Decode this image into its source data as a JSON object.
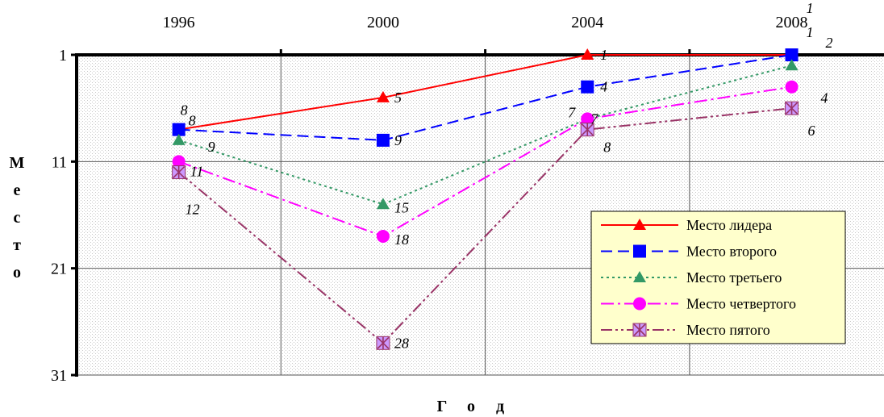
{
  "chart_data": {
    "type": "line",
    "xlabel": "Год",
    "ylabel": "Место",
    "x": [
      "1996",
      "2000",
      "2004",
      "2008"
    ],
    "yticks": [
      "1",
      "11",
      "21",
      "31"
    ],
    "ylim": [
      31,
      1
    ],
    "y_inverted": true,
    "grid": true,
    "legend_position": "bottom-right",
    "series": [
      {
        "name": "Место лидера",
        "values": [
          8,
          5,
          1,
          1
        ],
        "labels": [
          "8",
          "5",
          "1",
          "1"
        ],
        "color": "#ff0000",
        "dash": "solid",
        "marker": "triangle"
      },
      {
        "name": "Место второго",
        "values": [
          8,
          9,
          4,
          1
        ],
        "labels": [
          "8",
          "9",
          "4",
          "1"
        ],
        "color": "#0000ff",
        "dash": "dashed",
        "marker": "square"
      },
      {
        "name": "Место третьего",
        "values": [
          9,
          15,
          7,
          2
        ],
        "labels": [
          "9",
          "15",
          "7",
          "2"
        ],
        "color": "#339966",
        "dash": "dotted",
        "marker": "triangle"
      },
      {
        "name": "Место четвертого",
        "values": [
          11,
          18,
          7,
          4
        ],
        "labels": [
          "11",
          "18",
          "7",
          "4"
        ],
        "color": "#ff00ff",
        "dash": "dashdot",
        "marker": "circle"
      },
      {
        "name": "Место пятого",
        "values": [
          12,
          28,
          8,
          6
        ],
        "labels": [
          "12",
          "28",
          "8",
          "6"
        ],
        "color": "#993366",
        "dash": "dashdotdot",
        "marker": "star"
      }
    ]
  }
}
